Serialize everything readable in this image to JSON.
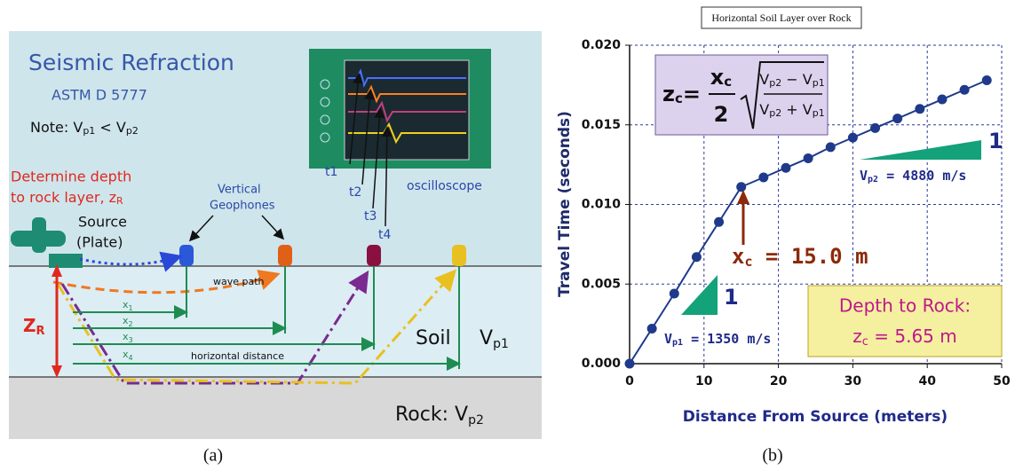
{
  "panel_a": {
    "title": "Seismic Refraction",
    "standard": "ASTM D 5777",
    "note": {
      "text": "Note:",
      "v1": "V",
      "v1_sub": "p1",
      "op": "<",
      "v2": "V",
      "v2_sub": "p2"
    },
    "task": {
      "line1": "Determine depth",
      "line2": "to rock layer, z",
      "line2_sub": "R"
    },
    "source": {
      "line1": "Source",
      "line2": "(Plate)"
    },
    "geophones": {
      "line1": "Vertical",
      "line2": "Geophones"
    },
    "oscilloscope": "oscilloscope",
    "times": [
      "t1",
      "t2",
      "t3",
      "t4"
    ],
    "wave_path": "wave path",
    "distances": [
      {
        "main": "x",
        "sub": "1"
      },
      {
        "main": "x",
        "sub": "2"
      },
      {
        "main": "x",
        "sub": "3"
      },
      {
        "main": "x",
        "sub": "4"
      }
    ],
    "horizontal_distance": "horizontal distance",
    "soil": "Soil",
    "soil_velocity": {
      "main": "V",
      "sub": "p1"
    },
    "depth": {
      "main": "Z",
      "sub": "R"
    },
    "rock": {
      "main": "Rock: V",
      "sub": "p2"
    }
  },
  "chart_data": {
    "type": "line",
    "title": "Horizontal Soil Layer over Rock",
    "x_label": "Distance From Source (meters)",
    "y_label": "Travel Time (seconds)",
    "x": [
      0,
      3,
      6,
      9,
      12,
      15,
      18,
      21,
      24,
      27,
      30,
      33,
      36,
      39,
      42,
      45,
      48
    ],
    "series": [
      {
        "color": "#1f3a8a",
        "values": [
          0,
          0.0022,
          0.0044,
          0.0067,
          0.0089,
          0.0111,
          0.0117,
          0.0123,
          0.0129,
          0.0136,
          0.0142,
          0.0148,
          0.0154,
          0.016,
          0.0166,
          0.0172,
          0.0178
        ]
      }
    ],
    "xlim": [
      0,
      50
    ],
    "xticks": [
      0,
      10,
      20,
      30,
      40,
      50
    ],
    "ylim": [
      0,
      0.02
    ],
    "yticks": [
      {
        "value": 0,
        "label": "0.000"
      },
      {
        "value": 0.005,
        "label": "0.005"
      },
      {
        "value": 0.01,
        "label": "0.010"
      },
      {
        "value": 0.015,
        "label": "0.015"
      },
      {
        "value": 0.02,
        "label": "0.020"
      }
    ],
    "grid": true,
    "annotations": {
      "formula": {
        "lhs": "z",
        "lhs_sub": "c",
        "eq": "=",
        "num": "x",
        "num_sub": "c",
        "den": "2",
        "top": [
          "V",
          "p2",
          " − V",
          "p1"
        ],
        "bottom": [
          "V",
          "p2",
          " + V",
          "p1"
        ]
      },
      "crossover": {
        "main": "x",
        "sub": "c",
        "rest": " = 15.0  m"
      },
      "v2": {
        "main": "V",
        "sub": "p2",
        "rest": " = 4880 m/s"
      },
      "v1": {
        "main": "V",
        "sub": "p1",
        "rest": " = 1350 m/s"
      },
      "slope_upper": "1",
      "slope_lower": "1",
      "depth_title": "Depth to Rock:",
      "depth": {
        "main": "z",
        "sub": "c",
        "rest": " = 5.65 m"
      }
    }
  },
  "captions": [
    "(a)",
    "(b)"
  ]
}
